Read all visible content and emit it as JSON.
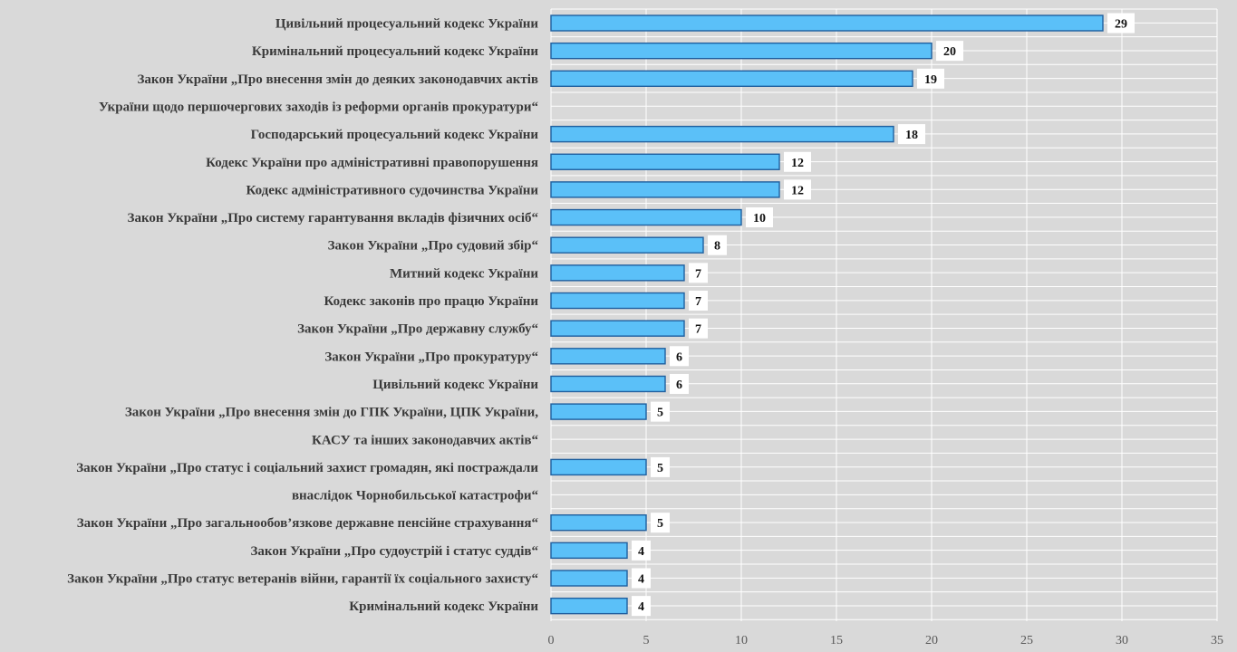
{
  "chart_data": {
    "type": "bar",
    "orientation": "horizontal",
    "title": "",
    "xlabel": "",
    "ylabel": "",
    "xlim": [
      0,
      35
    ],
    "xticks": [
      0,
      5,
      10,
      15,
      20,
      25,
      30,
      35
    ],
    "grid": true,
    "legend": "none",
    "categories": [
      [
        "Цивільний процесуальний кодекс України"
      ],
      [
        "Кримінальний процесуальний кодекс України"
      ],
      [
        "Закон України „Про внесення змін до деяких законодавчих актів",
        "України щодо першочергових заходів із реформи органів прокуратури“"
      ],
      [
        "Господарський процесуальний кодекс України"
      ],
      [
        "Кодекс України про адміністративні правопорушення"
      ],
      [
        "Кодекс адміністративного судочинства України"
      ],
      [
        "Закон України „Про систему гарантування вкладів фізичних осіб“"
      ],
      [
        "Закон України „Про судовий збір“"
      ],
      [
        "Митний кодекс України"
      ],
      [
        "Кодекс законів про працю України"
      ],
      [
        "Закон України „Про державну службу“"
      ],
      [
        "Закон України „Про прокуратуру“"
      ],
      [
        "Цивільний кодекс України"
      ],
      [
        "Закон України „Про внесення змін до ГПК України, ЦПК України,",
        "КАСУ та інших законодавчих актів“"
      ],
      [
        "Закон України „Про статус і соціальний захист громадян, які постраждали",
        "внаслідок Чорнобильської катастрофи“"
      ],
      [
        "Закон України „Про загальнообов’язкове державне пенсійне страхування“"
      ],
      [
        "Закон України „Про судоустрій і статус суддів“"
      ],
      [
        "Закон України „Про статус ветеранів війни, гарантії їх соціального захисту“"
      ],
      [
        "Кримінальний кодекс України"
      ]
    ],
    "values": [
      29,
      20,
      19,
      18,
      12,
      12,
      10,
      8,
      7,
      7,
      7,
      6,
      6,
      5,
      5,
      5,
      4,
      4,
      4
    ],
    "colors": {
      "bar_fill": "#5bc0f8",
      "bar_stroke": "#1f5f9f",
      "gridline": "#ffffff",
      "background": "#d9d9d9",
      "value_box": "#ffffff"
    }
  }
}
